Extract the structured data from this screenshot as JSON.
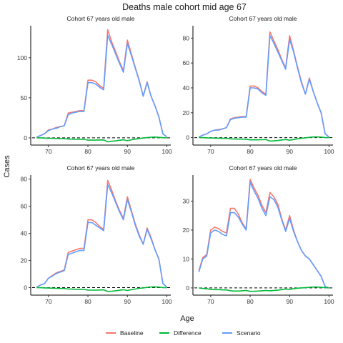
{
  "figure": {
    "title": "Deaths male cohort mid age 67",
    "xlabel": "Age",
    "ylabel": "Cases"
  },
  "legend": {
    "position": "bottom",
    "items": [
      {
        "label": "Baseline",
        "color": "#F8766D"
      },
      {
        "label": "Difference",
        "color": "#00BA38"
      },
      {
        "label": "Scenario",
        "color": "#619CFF"
      }
    ]
  },
  "chart_data": [
    {
      "type": "line",
      "title": "Cohort 67 years old male",
      "xlim": [
        65.5,
        101
      ],
      "ylim": [
        -9,
        140
      ],
      "x_ticks": [
        70,
        80,
        90,
        100
      ],
      "y_ticks": [
        0,
        50,
        100
      ],
      "reference_line": 0,
      "series": [
        {
          "name": "Baseline",
          "color": "#F8766D",
          "x": [
            67,
            68,
            69,
            70,
            71,
            72,
            73,
            74,
            75,
            76,
            77,
            78,
            79,
            80,
            81,
            82,
            83,
            84,
            85,
            86,
            87,
            88,
            89,
            90,
            91,
            92,
            93,
            94,
            95,
            96,
            97,
            98,
            99,
            100
          ],
          "values": [
            1,
            3,
            5,
            10,
            11,
            13,
            14,
            15,
            31,
            32,
            33,
            34,
            34,
            72,
            72,
            70,
            65,
            62,
            135,
            120,
            108,
            95,
            84,
            122,
            105,
            88,
            72,
            52,
            70,
            52,
            40,
            26,
            5,
            1
          ]
        },
        {
          "name": "Scenario",
          "color": "#619CFF",
          "x": [
            67,
            68,
            69,
            70,
            71,
            72,
            73,
            74,
            75,
            76,
            77,
            78,
            79,
            80,
            81,
            82,
            83,
            84,
            85,
            86,
            87,
            88,
            89,
            90,
            91,
            92,
            93,
            94,
            95,
            96,
            97,
            98,
            99,
            100
          ],
          "values": [
            1,
            3,
            5,
            9,
            11,
            12,
            14,
            15,
            29,
            31,
            32,
            33,
            33,
            69,
            69,
            67,
            63,
            60,
            128,
            117,
            105,
            93,
            82,
            118,
            103,
            87,
            71,
            52,
            69,
            52,
            40,
            26,
            5,
            1
          ]
        },
        {
          "name": "Difference",
          "color": "#00BA38",
          "x": [
            67,
            68,
            69,
            70,
            71,
            72,
            73,
            74,
            75,
            76,
            77,
            78,
            79,
            80,
            81,
            82,
            83,
            84,
            85,
            86,
            87,
            88,
            89,
            90,
            91,
            92,
            93,
            94,
            95,
            96,
            97,
            98,
            99,
            100
          ],
          "values": [
            0,
            0,
            -0.3,
            -0.5,
            -0.6,
            -0.8,
            -1,
            -1,
            -1.5,
            -1.6,
            -1.7,
            -1.8,
            -1.8,
            -2.8,
            -2.8,
            -2.8,
            -2.7,
            -2.6,
            -5,
            -4.2,
            -3.8,
            -3,
            -2.4,
            -3.6,
            -2.4,
            -1.6,
            -0.8,
            -0.3,
            0.3,
            0.8,
            1,
            0.6,
            0.2,
            0
          ]
        }
      ]
    },
    {
      "type": "line",
      "title": "Cohort 67 years old male",
      "xlim": [
        65.5,
        101
      ],
      "ylim": [
        -6,
        90
      ],
      "x_ticks": [
        70,
        80,
        90,
        100
      ],
      "y_ticks": [
        0,
        20,
        40,
        60,
        80
      ],
      "reference_line": 0,
      "series": [
        {
          "name": "Baseline",
          "color": "#F8766D",
          "x": [
            67,
            68,
            69,
            70,
            71,
            72,
            73,
            74,
            75,
            76,
            77,
            78,
            79,
            80,
            81,
            82,
            83,
            84,
            85,
            86,
            87,
            88,
            89,
            90,
            91,
            92,
            93,
            94,
            95,
            96,
            97,
            98,
            99,
            100
          ],
          "values": [
            0.5,
            2,
            3,
            5,
            6,
            6.5,
            7,
            8,
            15,
            16,
            16.5,
            17,
            17,
            41.5,
            41.5,
            40,
            37,
            35,
            85,
            78,
            71,
            63,
            56,
            82,
            70,
            57,
            45,
            35,
            48,
            37,
            28,
            20,
            3,
            0.5
          ]
        },
        {
          "name": "Scenario",
          "color": "#619CFF",
          "x": [
            67,
            68,
            69,
            70,
            71,
            72,
            73,
            74,
            75,
            76,
            77,
            78,
            79,
            80,
            81,
            82,
            83,
            84,
            85,
            86,
            87,
            88,
            89,
            90,
            91,
            92,
            93,
            94,
            95,
            96,
            97,
            98,
            99,
            100
          ],
          "values": [
            0.5,
            2,
            3,
            5,
            6,
            6,
            7,
            8,
            14.5,
            15.5,
            16,
            16.5,
            16.5,
            40,
            40,
            39,
            36,
            34,
            82,
            76,
            69,
            62,
            55,
            79,
            69,
            56,
            44,
            35,
            47,
            37,
            28,
            20,
            3,
            0.5
          ]
        },
        {
          "name": "Difference",
          "color": "#00BA38",
          "x": [
            67,
            68,
            69,
            70,
            71,
            72,
            73,
            74,
            75,
            76,
            77,
            78,
            79,
            80,
            81,
            82,
            83,
            84,
            85,
            86,
            87,
            88,
            89,
            90,
            91,
            92,
            93,
            94,
            95,
            96,
            97,
            98,
            99,
            100
          ],
          "values": [
            0,
            0,
            -0.2,
            -0.3,
            -0.4,
            -0.5,
            -0.6,
            -0.6,
            -1,
            -1.1,
            -1.2,
            -1.2,
            -1.3,
            -1.8,
            -1.8,
            -1.8,
            -1.7,
            -1.6,
            -2.8,
            -2.6,
            -2.3,
            -1.9,
            -1.5,
            -2.1,
            -1.5,
            -1,
            -0.5,
            -0.2,
            0.2,
            0.5,
            0.6,
            0.4,
            0.1,
            0
          ]
        }
      ]
    },
    {
      "type": "line",
      "title": "Cohort 67 years old male",
      "xlim": [
        65.5,
        101
      ],
      "ylim": [
        -5.5,
        83
      ],
      "x_ticks": [
        70,
        80,
        90,
        100
      ],
      "y_ticks": [
        0,
        20,
        40,
        60,
        80
      ],
      "reference_line": 0,
      "series": [
        {
          "name": "Baseline",
          "color": "#F8766D",
          "x": [
            67,
            68,
            69,
            70,
            71,
            72,
            73,
            74,
            75,
            76,
            77,
            78,
            79,
            80,
            81,
            82,
            83,
            84,
            85,
            86,
            87,
            88,
            89,
            90,
            91,
            92,
            93,
            94,
            95,
            96,
            97,
            98,
            99,
            100
          ],
          "values": [
            0.5,
            2,
            3,
            7,
            9,
            11,
            12,
            13,
            26,
            27,
            28,
            29,
            29,
            50,
            50,
            48,
            45,
            43,
            79,
            72,
            64,
            57,
            51,
            67,
            57,
            47,
            39,
            32,
            44,
            37,
            28,
            21,
            3,
            0.5
          ]
        },
        {
          "name": "Scenario",
          "color": "#619CFF",
          "x": [
            67,
            68,
            69,
            70,
            71,
            72,
            73,
            74,
            75,
            76,
            77,
            78,
            79,
            80,
            81,
            82,
            83,
            84,
            85,
            86,
            87,
            88,
            89,
            90,
            91,
            92,
            93,
            94,
            95,
            96,
            97,
            98,
            99,
            100
          ],
          "values": [
            0.5,
            2,
            3,
            7,
            8.5,
            10.5,
            11.5,
            12.5,
            24.5,
            25.5,
            26.5,
            27.5,
            27.5,
            48,
            48,
            46,
            44,
            42,
            76,
            70,
            63,
            56,
            50,
            65,
            56,
            46,
            38,
            32,
            43,
            36,
            28,
            21,
            3,
            0.5
          ]
        },
        {
          "name": "Difference",
          "color": "#00BA38",
          "x": [
            67,
            68,
            69,
            70,
            71,
            72,
            73,
            74,
            75,
            76,
            77,
            78,
            79,
            80,
            81,
            82,
            83,
            84,
            85,
            86,
            87,
            88,
            89,
            90,
            91,
            92,
            93,
            94,
            95,
            96,
            97,
            98,
            99,
            100
          ],
          "values": [
            0,
            0,
            -0.2,
            -0.3,
            -0.4,
            -0.5,
            -0.6,
            -0.6,
            -1,
            -1.1,
            -1.2,
            -1.2,
            -1.3,
            -1.8,
            -1.8,
            -1.8,
            -1.7,
            -1.6,
            -2.8,
            -2.6,
            -2.3,
            -1.9,
            -1.5,
            -2.1,
            -1.5,
            -1,
            -0.5,
            -0.2,
            0.2,
            0.5,
            0.6,
            0.4,
            0.1,
            0
          ]
        }
      ]
    },
    {
      "type": "line",
      "title": "Cohort 67 years old male",
      "xlim": [
        65.5,
        101
      ],
      "ylim": [
        -2.5,
        39
      ],
      "x_ticks": [
        70,
        80,
        90,
        100
      ],
      "y_ticks": [
        0,
        10,
        20,
        30
      ],
      "reference_line": 0,
      "series": [
        {
          "name": "Baseline",
          "color": "#F8766D",
          "x": [
            67,
            68,
            69,
            70,
            71,
            72,
            73,
            74,
            75,
            76,
            77,
            78,
            79,
            80,
            81,
            82,
            83,
            84,
            85,
            86,
            87,
            88,
            89,
            90,
            91,
            92,
            93,
            94,
            95,
            96,
            97,
            98,
            99,
            100
          ],
          "values": [
            6,
            10.5,
            11.5,
            20,
            21,
            20.5,
            19.5,
            19,
            27.5,
            27.5,
            25.5,
            22.5,
            20.5,
            37.5,
            34.5,
            32,
            28.5,
            26,
            33,
            31.5,
            29,
            24,
            20,
            25,
            20,
            16,
            13,
            11,
            10,
            8,
            6,
            4,
            0.5,
            0
          ]
        },
        {
          "name": "Scenario",
          "color": "#619CFF",
          "x": [
            67,
            68,
            69,
            70,
            71,
            72,
            73,
            74,
            75,
            76,
            77,
            78,
            79,
            80,
            81,
            82,
            83,
            84,
            85,
            86,
            87,
            88,
            89,
            90,
            91,
            92,
            93,
            94,
            95,
            96,
            97,
            98,
            99,
            100
          ],
          "values": [
            5.5,
            10,
            11,
            19,
            20,
            19.5,
            18.5,
            18,
            26,
            26,
            24.5,
            22,
            20,
            36.5,
            33.5,
            31,
            27.5,
            25,
            31.5,
            30.5,
            28,
            23.5,
            19.5,
            24,
            19.5,
            16,
            13,
            11,
            10,
            8,
            6,
            4,
            0.5,
            0
          ]
        },
        {
          "name": "Difference",
          "color": "#00BA38",
          "x": [
            67,
            68,
            69,
            70,
            71,
            72,
            73,
            74,
            75,
            76,
            77,
            78,
            79,
            80,
            81,
            82,
            83,
            84,
            85,
            86,
            87,
            88,
            89,
            90,
            91,
            92,
            93,
            94,
            95,
            96,
            97,
            98,
            99,
            100
          ],
          "values": [
            0,
            -0.2,
            -0.3,
            -0.5,
            -0.6,
            -0.6,
            -0.7,
            -0.7,
            -1,
            -1.1,
            -1.1,
            -1,
            -0.9,
            -1.2,
            -1.2,
            -1.1,
            -1,
            -0.9,
            -1,
            -0.9,
            -0.8,
            -0.6,
            -0.4,
            -0.5,
            -0.3,
            -0.1,
            0,
            0.1,
            0.2,
            0.3,
            0.3,
            0.2,
            0.1,
            0
          ]
        }
      ]
    }
  ]
}
